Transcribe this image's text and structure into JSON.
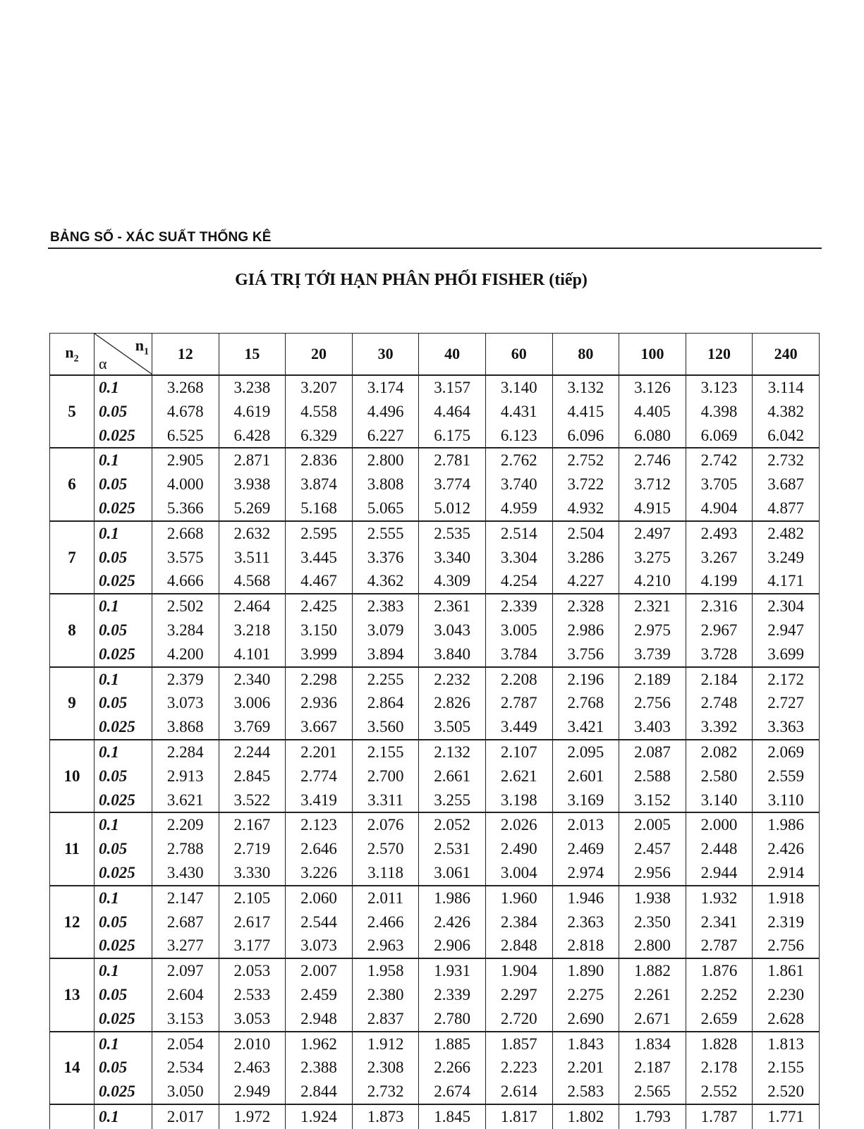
{
  "header": {
    "running_title": "BẢNG SỐ - XÁC SUẤT THỐNG KÊ",
    "title": "GIÁ TRỊ TỚI HẠN PHÂN PHỐI FISHER  (tiếp)"
  },
  "table": {
    "n2_label": "n2",
    "n1_label": "n1",
    "alpha_label": "α",
    "columns": [
      "12",
      "15",
      "20",
      "30",
      "40",
      "60",
      "80",
      "100",
      "120",
      "240"
    ],
    "groups": [
      {
        "n2": "5",
        "rows": [
          {
            "alpha": "0.1",
            "values": [
              "3.268",
              "3.238",
              "3.207",
              "3.174",
              "3.157",
              "3.140",
              "3.132",
              "3.126",
              "3.123",
              "3.114"
            ]
          },
          {
            "alpha": "0.05",
            "values": [
              "4.678",
              "4.619",
              "4.558",
              "4.496",
              "4.464",
              "4.431",
              "4.415",
              "4.405",
              "4.398",
              "4.382"
            ]
          },
          {
            "alpha": "0.025",
            "values": [
              "6.525",
              "6.428",
              "6.329",
              "6.227",
              "6.175",
              "6.123",
              "6.096",
              "6.080",
              "6.069",
              "6.042"
            ]
          }
        ]
      },
      {
        "n2": "6",
        "rows": [
          {
            "alpha": "0.1",
            "values": [
              "2.905",
              "2.871",
              "2.836",
              "2.800",
              "2.781",
              "2.762",
              "2.752",
              "2.746",
              "2.742",
              "2.732"
            ]
          },
          {
            "alpha": "0.05",
            "values": [
              "4.000",
              "3.938",
              "3.874",
              "3.808",
              "3.774",
              "3.740",
              "3.722",
              "3.712",
              "3.705",
              "3.687"
            ]
          },
          {
            "alpha": "0.025",
            "values": [
              "5.366",
              "5.269",
              "5.168",
              "5.065",
              "5.012",
              "4.959",
              "4.932",
              "4.915",
              "4.904",
              "4.877"
            ]
          }
        ]
      },
      {
        "n2": "7",
        "rows": [
          {
            "alpha": "0.1",
            "values": [
              "2.668",
              "2.632",
              "2.595",
              "2.555",
              "2.535",
              "2.514",
              "2.504",
              "2.497",
              "2.493",
              "2.482"
            ]
          },
          {
            "alpha": "0.05",
            "values": [
              "3.575",
              "3.511",
              "3.445",
              "3.376",
              "3.340",
              "3.304",
              "3.286",
              "3.275",
              "3.267",
              "3.249"
            ]
          },
          {
            "alpha": "0.025",
            "values": [
              "4.666",
              "4.568",
              "4.467",
              "4.362",
              "4.309",
              "4.254",
              "4.227",
              "4.210",
              "4.199",
              "4.171"
            ]
          }
        ]
      },
      {
        "n2": "8",
        "rows": [
          {
            "alpha": "0.1",
            "values": [
              "2.502",
              "2.464",
              "2.425",
              "2.383",
              "2.361",
              "2.339",
              "2.328",
              "2.321",
              "2.316",
              "2.304"
            ]
          },
          {
            "alpha": "0.05",
            "values": [
              "3.284",
              "3.218",
              "3.150",
              "3.079",
              "3.043",
              "3.005",
              "2.986",
              "2.975",
              "2.967",
              "2.947"
            ]
          },
          {
            "alpha": "0.025",
            "values": [
              "4.200",
              "4.101",
              "3.999",
              "3.894",
              "3.840",
              "3.784",
              "3.756",
              "3.739",
              "3.728",
              "3.699"
            ]
          }
        ]
      },
      {
        "n2": "9",
        "rows": [
          {
            "alpha": "0.1",
            "values": [
              "2.379",
              "2.340",
              "2.298",
              "2.255",
              "2.232",
              "2.208",
              "2.196",
              "2.189",
              "2.184",
              "2.172"
            ]
          },
          {
            "alpha": "0.05",
            "values": [
              "3.073",
              "3.006",
              "2.936",
              "2.864",
              "2.826",
              "2.787",
              "2.768",
              "2.756",
              "2.748",
              "2.727"
            ]
          },
          {
            "alpha": "0.025",
            "values": [
              "3.868",
              "3.769",
              "3.667",
              "3.560",
              "3.505",
              "3.449",
              "3.421",
              "3.403",
              "3.392",
              "3.363"
            ]
          }
        ]
      },
      {
        "n2": "10",
        "rows": [
          {
            "alpha": "0.1",
            "values": [
              "2.284",
              "2.244",
              "2.201",
              "2.155",
              "2.132",
              "2.107",
              "2.095",
              "2.087",
              "2.082",
              "2.069"
            ]
          },
          {
            "alpha": "0.05",
            "values": [
              "2.913",
              "2.845",
              "2.774",
              "2.700",
              "2.661",
              "2.621",
              "2.601",
              "2.588",
              "2.580",
              "2.559"
            ]
          },
          {
            "alpha": "0.025",
            "values": [
              "3.621",
              "3.522",
              "3.419",
              "3.311",
              "3.255",
              "3.198",
              "3.169",
              "3.152",
              "3.140",
              "3.110"
            ]
          }
        ]
      },
      {
        "n2": "11",
        "rows": [
          {
            "alpha": "0.1",
            "values": [
              "2.209",
              "2.167",
              "2.123",
              "2.076",
              "2.052",
              "2.026",
              "2.013",
              "2.005",
              "2.000",
              "1.986"
            ]
          },
          {
            "alpha": "0.05",
            "values": [
              "2.788",
              "2.719",
              "2.646",
              "2.570",
              "2.531",
              "2.490",
              "2.469",
              "2.457",
              "2.448",
              "2.426"
            ]
          },
          {
            "alpha": "0.025",
            "values": [
              "3.430",
              "3.330",
              "3.226",
              "3.118",
              "3.061",
              "3.004",
              "2.974",
              "2.956",
              "2.944",
              "2.914"
            ]
          }
        ]
      },
      {
        "n2": "12",
        "rows": [
          {
            "alpha": "0.1",
            "values": [
              "2.147",
              "2.105",
              "2.060",
              "2.011",
              "1.986",
              "1.960",
              "1.946",
              "1.938",
              "1.932",
              "1.918"
            ]
          },
          {
            "alpha": "0.05",
            "values": [
              "2.687",
              "2.617",
              "2.544",
              "2.466",
              "2.426",
              "2.384",
              "2.363",
              "2.350",
              "2.341",
              "2.319"
            ]
          },
          {
            "alpha": "0.025",
            "values": [
              "3.277",
              "3.177",
              "3.073",
              "2.963",
              "2.906",
              "2.848",
              "2.818",
              "2.800",
              "2.787",
              "2.756"
            ]
          }
        ]
      },
      {
        "n2": "13",
        "rows": [
          {
            "alpha": "0.1",
            "values": [
              "2.097",
              "2.053",
              "2.007",
              "1.958",
              "1.931",
              "1.904",
              "1.890",
              "1.882",
              "1.876",
              "1.861"
            ]
          },
          {
            "alpha": "0.05",
            "values": [
              "2.604",
              "2.533",
              "2.459",
              "2.380",
              "2.339",
              "2.297",
              "2.275",
              "2.261",
              "2.252",
              "2.230"
            ]
          },
          {
            "alpha": "0.025",
            "values": [
              "3.153",
              "3.053",
              "2.948",
              "2.837",
              "2.780",
              "2.720",
              "2.690",
              "2.671",
              "2.659",
              "2.628"
            ]
          }
        ]
      },
      {
        "n2": "14",
        "rows": [
          {
            "alpha": "0.1",
            "values": [
              "2.054",
              "2.010",
              "1.962",
              "1.912",
              "1.885",
              "1.857",
              "1.843",
              "1.834",
              "1.828",
              "1.813"
            ]
          },
          {
            "alpha": "0.05",
            "values": [
              "2.534",
              "2.463",
              "2.388",
              "2.308",
              "2.266",
              "2.223",
              "2.201",
              "2.187",
              "2.178",
              "2.155"
            ]
          },
          {
            "alpha": "0.025",
            "values": [
              "3.050",
              "2.949",
              "2.844",
              "2.732",
              "2.674",
              "2.614",
              "2.583",
              "2.565",
              "2.552",
              "2.520"
            ]
          }
        ]
      },
      {
        "n2": "",
        "rows": [
          {
            "alpha": "0.1",
            "values": [
              "2.017",
              "1.972",
              "1.924",
              "1.873",
              "1.845",
              "1.817",
              "1.802",
              "1.793",
              "1.787",
              "1.771"
            ]
          }
        ]
      }
    ]
  }
}
